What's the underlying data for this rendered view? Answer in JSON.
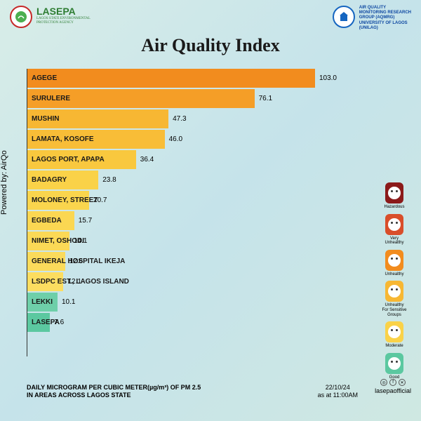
{
  "logos": {
    "left": {
      "title": "LASEPA",
      "subtitle": "LAGOS STATE ENVIRONMENTAL\nPROTECTION AGENCY"
    },
    "right": {
      "lines": "AIR QUALITY\nMONITORING RESEARCH\nGROUP (AQMRG)\nUNIVERSITY OF LAGOS\n(UNILAG)"
    }
  },
  "title": "Air Quality Index",
  "powered_by": "Powered by: AirQo",
  "chart": {
    "type": "bar",
    "max_value": 103.0,
    "bars": [
      {
        "label": "AGEGE",
        "value": 103.0,
        "color": "#f28c1e"
      },
      {
        "label": "SURULERE",
        "value": 76.1,
        "color": "#f59e27"
      },
      {
        "label": "MUSHIN",
        "value": 47.3,
        "color": "#f7b733"
      },
      {
        "label": "LAMATA, KOSOFE",
        "value": 46.0,
        "color": "#f8bd37"
      },
      {
        "label": "LAGOS PORT, APAPA",
        "value": 36.4,
        "color": "#f9c83e"
      },
      {
        "label": "BADAGRY",
        "value": 23.8,
        "color": "#fad248"
      },
      {
        "label": "MOLONEY, STREET",
        "value": 20.7,
        "color": "#fad54d"
      },
      {
        "label": "EGBEDA",
        "value": 15.7,
        "color": "#fbd752"
      },
      {
        "label": "NIMET, OSHODI",
        "value": 14.1,
        "color": "#fbd956"
      },
      {
        "label": "GENERAL HOSPITAL IKEJA",
        "value": 12.6,
        "color": "#fbdb5b"
      },
      {
        "label": "LSDPC EST., LAGOS ISLAND",
        "value": 12.1,
        "color": "#fcdd60"
      },
      {
        "label": "LEKKI",
        "value": 10.1,
        "color": "#6ecfa9"
      },
      {
        "label": "LASEPA",
        "value": 7.6,
        "color": "#5bc8a0"
      }
    ]
  },
  "legend": [
    {
      "label": "Hazardous",
      "color": "#8b1a1a"
    },
    {
      "label": "Very\nUnhealthy",
      "color": "#d94e2a"
    },
    {
      "label": "Unhealthy",
      "color": "#f28c1e"
    },
    {
      "label": "Unhealthy\nFor Sensitive\nGroups",
      "color": "#f7b733"
    },
    {
      "label": "Moderate",
      "color": "#fad248"
    },
    {
      "label": "Good",
      "color": "#5bc8a0"
    }
  ],
  "footer": {
    "left_line1": "DAILY MICROGRAM PER CUBIC METER(µg/m³) OF PM 2.5",
    "left_line2": "IN AREAS ACROSS LAGOS STATE",
    "date": "22/10/24",
    "time": "as at 11:00AM",
    "handle": "lasepaofficial"
  }
}
